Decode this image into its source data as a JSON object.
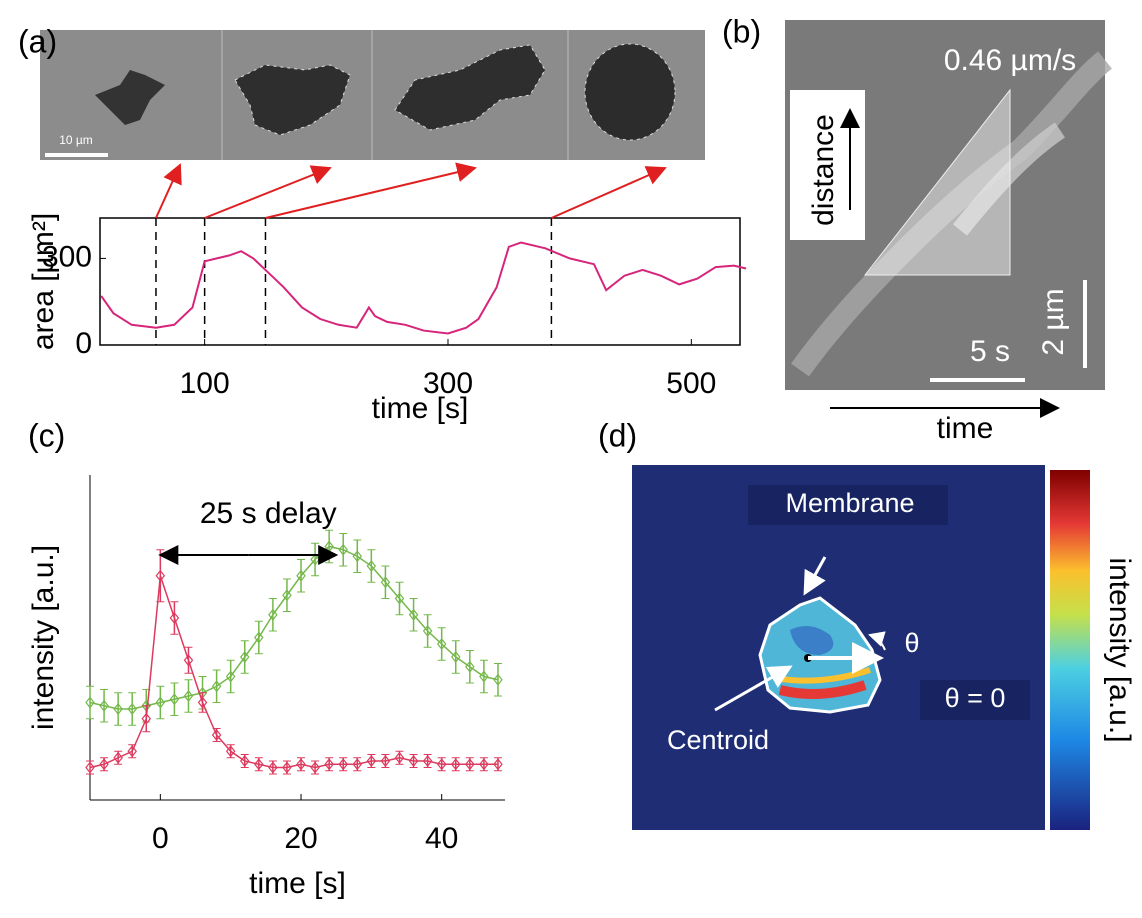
{
  "panels": {
    "a": "(a)",
    "b": "(b)",
    "c": "(c)",
    "d": "(d)"
  },
  "images_a": {
    "scale_bar": "10 µm"
  },
  "kymograph": {
    "speed": "0.46 µm/s",
    "y_label": "distance",
    "x_label": "time",
    "time_bar": "5 s",
    "distance_bar": "2 µm"
  },
  "heatmap": {
    "membrane": "Membrane",
    "centroid": "Centroid",
    "theta": "θ",
    "theta_zero": "θ = 0",
    "colorbar_label": "intensity [a.u.]"
  },
  "chart_data": [
    {
      "type": "line",
      "x_label": "time [s]",
      "y_label": "area [µm²]",
      "color": "#d6257a",
      "x": [
        15,
        25,
        40,
        60,
        75,
        90,
        100,
        110,
        120,
        130,
        140,
        150,
        165,
        180,
        195,
        210,
        225,
        235,
        240,
        250,
        265,
        280,
        300,
        315,
        325,
        340,
        350,
        360,
        380,
        400,
        420,
        430,
        445,
        460,
        475,
        490,
        505,
        520,
        535,
        545
      ],
      "values": [
        170,
        110,
        70,
        60,
        70,
        130,
        290,
        300,
        310,
        325,
        300,
        260,
        200,
        130,
        90,
        70,
        60,
        130,
        100,
        80,
        70,
        50,
        40,
        60,
        90,
        200,
        340,
        355,
        335,
        300,
        280,
        190,
        240,
        260,
        240,
        210,
        230,
        270,
        275,
        265
      ],
      "markers": [
        60,
        100,
        150,
        385
      ],
      "xlim": [
        14,
        540
      ],
      "ylim": [
        0,
        440
      ],
      "xticks": [
        100,
        300,
        500
      ],
      "yticks": [
        0,
        300
      ]
    },
    {
      "type": "errorbar",
      "x_label": "time [s]",
      "y_label": "intensity [a.u.]",
      "annotation": "25 s delay",
      "annotation_span": [
        0,
        25
      ],
      "x": [
        -10,
        -8,
        -6,
        -4,
        -2,
        0,
        2,
        4,
        6,
        8,
        10,
        12,
        14,
        16,
        18,
        20,
        22,
        24,
        26,
        28,
        30,
        32,
        34,
        36,
        38,
        40,
        42,
        44,
        46,
        48
      ],
      "series": [
        {
          "color": "#74b84a",
          "values": [
            0.3,
            0.29,
            0.28,
            0.28,
            0.29,
            0.3,
            0.31,
            0.32,
            0.33,
            0.35,
            0.38,
            0.44,
            0.5,
            0.57,
            0.63,
            0.69,
            0.74,
            0.78,
            0.77,
            0.75,
            0.72,
            0.67,
            0.62,
            0.57,
            0.52,
            0.48,
            0.44,
            0.41,
            0.38,
            0.37
          ],
          "errors": [
            0.05,
            0.05,
            0.05,
            0.05,
            0.05,
            0.05,
            0.05,
            0.05,
            0.05,
            0.05,
            0.05,
            0.05,
            0.05,
            0.05,
            0.05,
            0.05,
            0.05,
            0.05,
            0.05,
            0.05,
            0.05,
            0.05,
            0.05,
            0.05,
            0.05,
            0.05,
            0.05,
            0.05,
            0.05,
            0.05
          ]
        },
        {
          "color": "#dc3a5e",
          "values": [
            0.1,
            0.11,
            0.13,
            0.15,
            0.25,
            0.69,
            0.56,
            0.43,
            0.3,
            0.2,
            0.15,
            0.12,
            0.11,
            0.1,
            0.1,
            0.11,
            0.1,
            0.11,
            0.11,
            0.11,
            0.12,
            0.12,
            0.13,
            0.12,
            0.12,
            0.11,
            0.11,
            0.11,
            0.11,
            0.11
          ],
          "errors": [
            0.02,
            0.02,
            0.02,
            0.02,
            0.04,
            0.08,
            0.05,
            0.04,
            0.03,
            0.02,
            0.02,
            0.02,
            0.02,
            0.02,
            0.02,
            0.02,
            0.02,
            0.02,
            0.02,
            0.02,
            0.02,
            0.02,
            0.02,
            0.02,
            0.02,
            0.02,
            0.02,
            0.02,
            0.02,
            0.02
          ]
        }
      ],
      "xlim": [
        -10,
        49
      ],
      "ylim": [
        0,
        1
      ],
      "xticks": [
        0,
        20,
        40
      ]
    }
  ]
}
